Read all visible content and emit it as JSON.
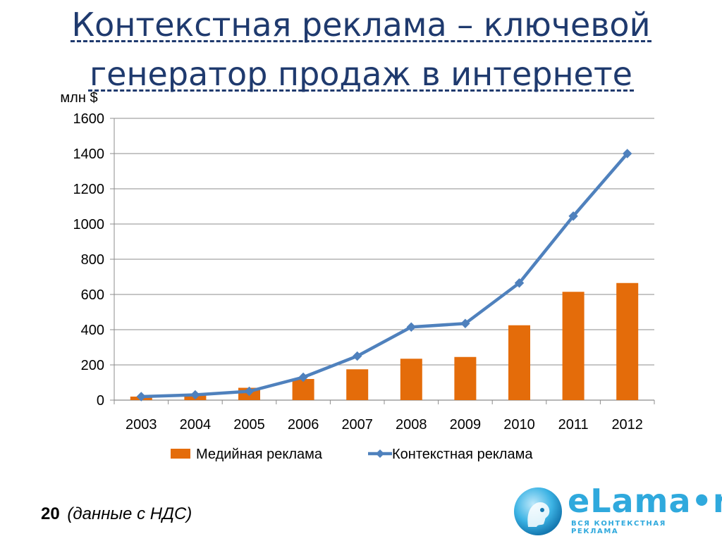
{
  "title": {
    "line1": "Контекстная реклама – ключевой",
    "line2": "генератор продаж в интернете"
  },
  "footer": {
    "page_number": "20",
    "note": "(данные с НДС)"
  },
  "logo": {
    "name": "eLama•ru",
    "tagline": "ВСЯ КОНТЕКСТНАЯ РЕКЛАМА",
    "color": "#2fa9dd"
  },
  "chart_data": {
    "type": "bar+line",
    "ylabel": "млн $",
    "ylim": [
      0,
      1600
    ],
    "yticks": [
      0,
      200,
      400,
      600,
      800,
      1000,
      1200,
      1400,
      1600
    ],
    "grid": true,
    "legend_position": "bottom",
    "categories": [
      "2003",
      "2004",
      "2005",
      "2006",
      "2007",
      "2008",
      "2009",
      "2010",
      "2011",
      "2012"
    ],
    "series": [
      {
        "name": "Медийная реклама",
        "kind": "bar",
        "color": "#e46c0a",
        "values": [
          20,
          30,
          70,
          120,
          175,
          235,
          245,
          425,
          615,
          665
        ]
      },
      {
        "name": "Контекстная реклама",
        "kind": "line",
        "color": "#4f81bd",
        "values": [
          20,
          30,
          50,
          130,
          250,
          415,
          435,
          665,
          1045,
          1400
        ]
      }
    ]
  }
}
